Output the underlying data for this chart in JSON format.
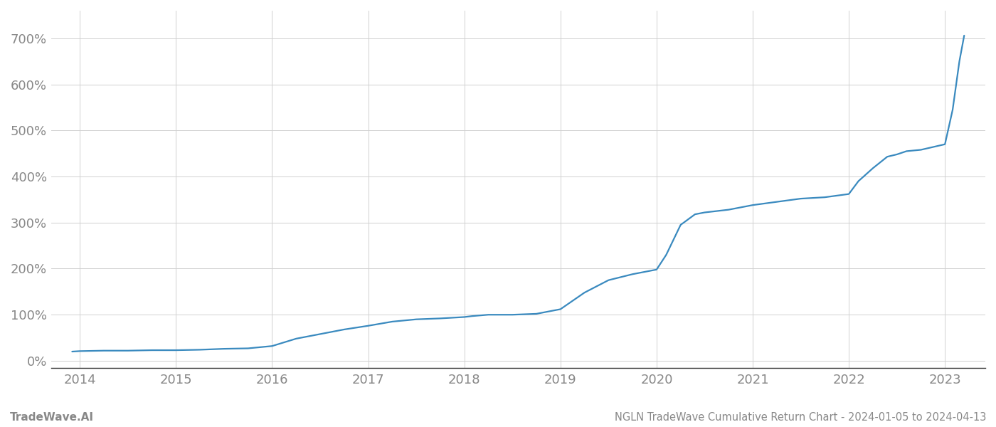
{
  "title": "NGLN TradeWave Cumulative Return Chart - 2024-01-05 to 2024-04-13",
  "watermark": "TradeWave.AI",
  "line_color": "#3a8abf",
  "background_color": "#ffffff",
  "grid_color": "#d0d0d0",
  "x_years": [
    2014,
    2015,
    2016,
    2017,
    2018,
    2019,
    2020,
    2021,
    2022,
    2023
  ],
  "x_data": [
    2013.92,
    2014.0,
    2014.25,
    2014.5,
    2014.75,
    2015.0,
    2015.25,
    2015.5,
    2015.75,
    2016.0,
    2016.25,
    2016.5,
    2016.75,
    2017.0,
    2017.25,
    2017.5,
    2017.75,
    2018.0,
    2018.08,
    2018.25,
    2018.5,
    2018.75,
    2019.0,
    2019.25,
    2019.5,
    2019.75,
    2020.0,
    2020.1,
    2020.25,
    2020.4,
    2020.5,
    2020.75,
    2021.0,
    2021.25,
    2021.5,
    2021.75,
    2022.0,
    2022.1,
    2022.25,
    2022.4,
    2022.5,
    2022.6,
    2022.75,
    2023.0,
    2023.08,
    2023.15,
    2023.2
  ],
  "y_data": [
    20,
    21,
    22,
    22,
    23,
    23,
    24,
    26,
    27,
    32,
    48,
    58,
    68,
    76,
    85,
    90,
    92,
    95,
    97,
    100,
    100,
    102,
    112,
    148,
    175,
    188,
    198,
    230,
    295,
    318,
    322,
    328,
    338,
    345,
    352,
    355,
    362,
    390,
    418,
    443,
    448,
    455,
    458,
    470,
    545,
    650,
    706
  ],
  "ylim": [
    -15,
    760
  ],
  "yticks": [
    0,
    100,
    200,
    300,
    400,
    500,
    600,
    700
  ],
  "xlim": [
    2013.7,
    2023.42
  ],
  "title_fontsize": 10.5,
  "watermark_fontsize": 11,
  "tick_fontsize": 13,
  "tick_color": "#888888",
  "spine_color": "#333333"
}
